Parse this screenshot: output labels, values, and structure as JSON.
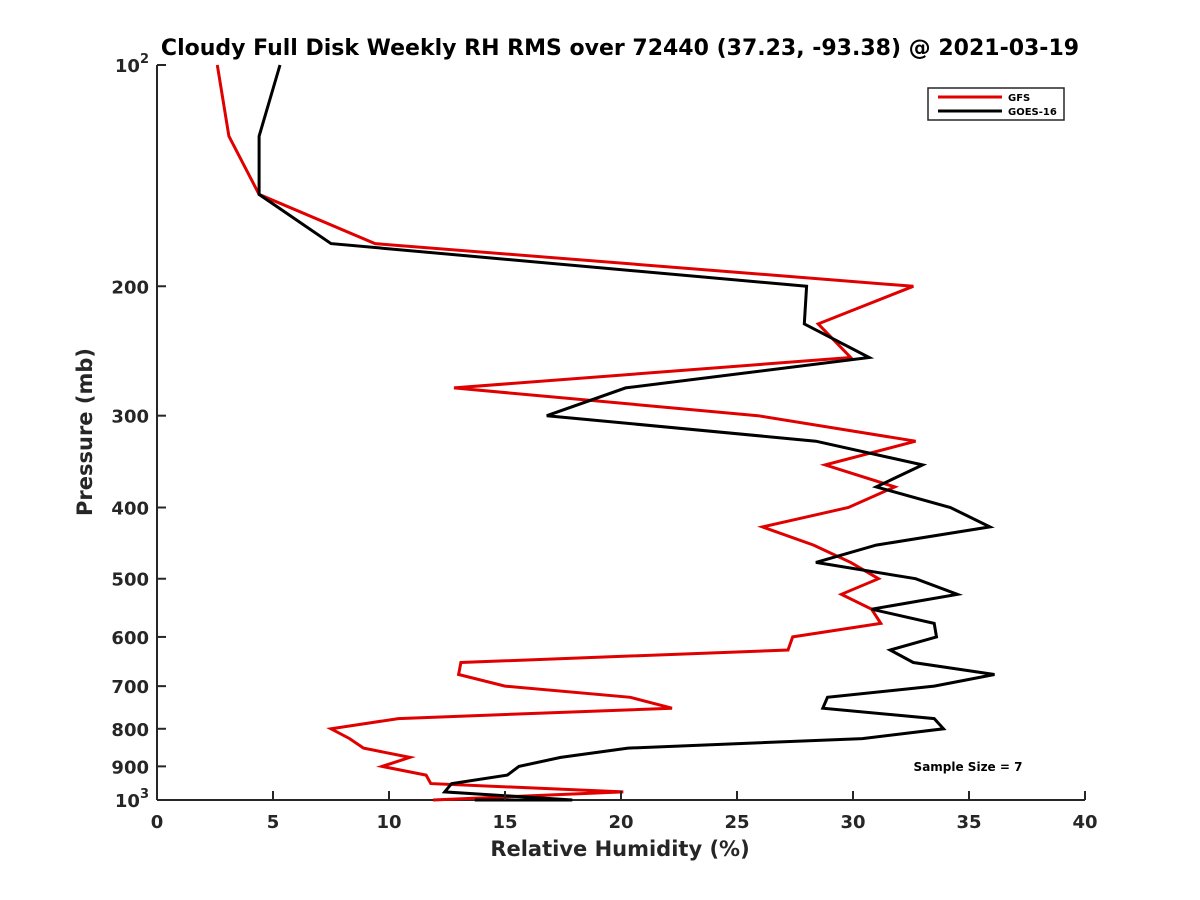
{
  "chart_data": {
    "type": "line",
    "title": "Cloudy Full Disk Weekly RH RMS over 72440 (37.23, -93.38) @ 2021-03-19",
    "xlabel": "Relative Humidity (%)",
    "ylabel": "Pressure (mb)",
    "xlim": [
      0,
      40
    ],
    "ylim": [
      100,
      1000
    ],
    "yscale": "log",
    "y_reversed": true,
    "grid": false,
    "legend_position": "top-right",
    "x_ticks": [
      "0",
      "5",
      "10",
      "15",
      "20",
      "25",
      "30",
      "35",
      "40"
    ],
    "y_ticks": [
      {
        "value": 100,
        "base": "10",
        "exp": "2"
      },
      {
        "value": 200,
        "label": "200"
      },
      {
        "value": 300,
        "label": "300"
      },
      {
        "value": 400,
        "label": "400"
      },
      {
        "value": 500,
        "label": "500"
      },
      {
        "value": 600,
        "label": "600"
      },
      {
        "value": 700,
        "label": "700"
      },
      {
        "value": 800,
        "label": "800"
      },
      {
        "value": 900,
        "label": "900"
      },
      {
        "value": 1000,
        "base": "10",
        "exp": "3"
      }
    ],
    "series": [
      {
        "name": "GFS",
        "color": "#e00000",
        "points": [
          [
            2.6,
            100
          ],
          [
            3.1,
            125
          ],
          [
            4.4,
            150
          ],
          [
            9.4,
            175
          ],
          [
            32.6,
            200
          ],
          [
            28.5,
            225
          ],
          [
            29.9,
            250
          ],
          [
            12.8,
            275
          ],
          [
            25.9,
            300
          ],
          [
            32.7,
            325
          ],
          [
            28.8,
            350
          ],
          [
            31.8,
            375
          ],
          [
            29.8,
            400
          ],
          [
            26.1,
            425
          ],
          [
            28.3,
            450
          ],
          [
            29.9,
            475
          ],
          [
            31.1,
            500
          ],
          [
            29.5,
            525
          ],
          [
            30.8,
            550
          ],
          [
            31.2,
            575
          ],
          [
            27.4,
            600
          ],
          [
            27.2,
            625
          ],
          [
            13.1,
            650
          ],
          [
            13.0,
            675
          ],
          [
            15.0,
            700
          ],
          [
            20.4,
            725
          ],
          [
            22.2,
            750
          ],
          [
            10.4,
            775
          ],
          [
            7.5,
            800
          ],
          [
            8.3,
            825
          ],
          [
            8.9,
            850
          ],
          [
            10.9,
            875
          ],
          [
            9.7,
            900
          ],
          [
            11.6,
            925
          ],
          [
            11.8,
            950
          ],
          [
            20.1,
            975
          ],
          [
            11.9,
            1000
          ]
        ]
      },
      {
        "name": "GOES-16",
        "color": "#000000",
        "points": [
          [
            5.3,
            100
          ],
          [
            4.4,
            125
          ],
          [
            4.4,
            150
          ],
          [
            7.5,
            175
          ],
          [
            28.0,
            200
          ],
          [
            27.9,
            225
          ],
          [
            30.7,
            250
          ],
          [
            20.2,
            275
          ],
          [
            16.8,
            300
          ],
          [
            28.4,
            325
          ],
          [
            33.0,
            350
          ],
          [
            31.0,
            375
          ],
          [
            34.2,
            400
          ],
          [
            35.9,
            425
          ],
          [
            31.0,
            450
          ],
          [
            28.4,
            475
          ],
          [
            32.7,
            500
          ],
          [
            34.5,
            525
          ],
          [
            30.8,
            550
          ],
          [
            33.5,
            575
          ],
          [
            33.6,
            600
          ],
          [
            31.6,
            625
          ],
          [
            32.6,
            650
          ],
          [
            36.1,
            675
          ],
          [
            33.5,
            700
          ],
          [
            28.9,
            725
          ],
          [
            28.7,
            750
          ],
          [
            33.5,
            775
          ],
          [
            33.9,
            800
          ],
          [
            30.4,
            825
          ],
          [
            20.3,
            850
          ],
          [
            17.4,
            875
          ],
          [
            15.6,
            900
          ],
          [
            15.1,
            925
          ],
          [
            12.7,
            950
          ],
          [
            12.4,
            975
          ],
          [
            17.9,
            1000
          ],
          [
            13.7,
            1000
          ]
        ]
      }
    ],
    "annotations": [
      "Sample Size = 7"
    ]
  }
}
